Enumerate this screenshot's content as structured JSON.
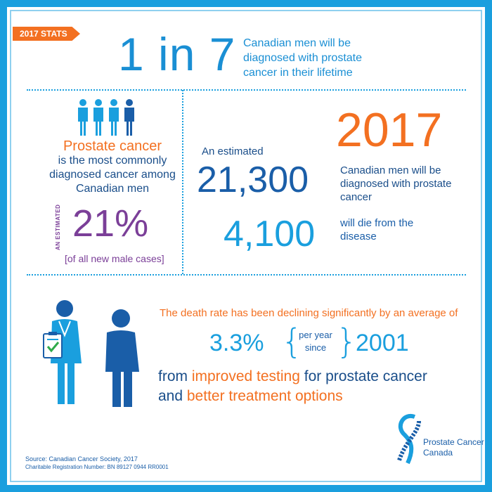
{
  "tag": "2017 STATS",
  "headline": {
    "big": "1 in 7",
    "text": "Canadian men will be diagnosed with prostate cancer in their lifetime"
  },
  "left_panel": {
    "title": "Prostate cancer",
    "body": "is the most commonly diagnosed cancer among Canadian men",
    "vertical_label": "AN ESTIMATED",
    "percent": "21%",
    "percent_note": "[of all new male cases]"
  },
  "right_panel": {
    "intro": "An estimated",
    "year": "2017",
    "diagnosed_number": "21,300",
    "diagnosed_text": "Canadian men will be diagnosed with prostate cancer",
    "deaths_number": "4,100",
    "deaths_text": "will die from the disease"
  },
  "bottom": {
    "death_rate": "The death rate has been declining significantly by an average of",
    "percent": "3.3%",
    "per_year_line1": "per year",
    "per_year_line2": "since",
    "year": "2001",
    "line1_prefix": "from ",
    "line1_highlight": "improved testing",
    "line1_suffix": " for prostate cancer",
    "line2_prefix": "and ",
    "line2_highlight": "better treatment options"
  },
  "footer": {
    "source": "Source: Canadian Cancer Society, 2017",
    "charitable": "Charitable Registration Number: BN 89127 0944 RR0001"
  },
  "logo": {
    "line1": "Prostate Cancer",
    "line2": "Canada"
  },
  "colors": {
    "blue": "#1a9fde",
    "dark_blue": "#1a4e8a",
    "orange": "#f37021",
    "purple": "#7b3f98"
  },
  "icons": [
    "people-row-icon",
    "doctor-icon",
    "patient-icon",
    "checklist-icon",
    "ribbon-logo-icon"
  ]
}
